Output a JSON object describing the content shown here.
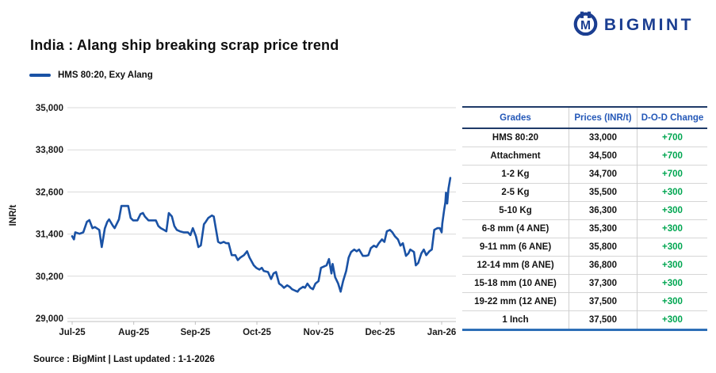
{
  "header": {
    "logo_text": "BIGMINT",
    "logo_icon": "bigmint-circle-m-icon",
    "logo_color": "#1b3e91"
  },
  "title": "India : Alang ship breaking scrap price trend",
  "legend": {
    "label": "HMS 80:20, Exy Alang",
    "line_color": "#1a52a5"
  },
  "chart_data": {
    "type": "line",
    "title": "India : Alang ship breaking scrap price trend",
    "xlabel": "",
    "ylabel": "INR/t",
    "ylim": [
      29000,
      35000
    ],
    "grid": "horizontal",
    "legend_position": "top-left",
    "x_tick_labels": [
      "Jul-25",
      "Aug-25",
      "Sep-25",
      "Oct-25",
      "Nov-25",
      "Dec-25",
      "Jan-26"
    ],
    "y_ticks": [
      {
        "v": 35000,
        "label": "35,000"
      },
      {
        "v": 33800,
        "label": "33,800"
      },
      {
        "v": 32600,
        "label": "32,600"
      },
      {
        "v": 31400,
        "label": "31,400"
      },
      {
        "v": 30200,
        "label": "30,200"
      },
      {
        "v": 29000,
        "label": "29,000"
      }
    ],
    "series": [
      {
        "name": "HMS 80:20, Exy Alang",
        "color": "#1a52a5",
        "x_unit": "months since Jul-25 tick (0=Jul-25, 6=Jan-26)",
        "points": [
          [
            0.0,
            31340
          ],
          [
            0.03,
            31250
          ],
          [
            0.05,
            31450
          ],
          [
            0.12,
            31410
          ],
          [
            0.18,
            31450
          ],
          [
            0.24,
            31750
          ],
          [
            0.28,
            31800
          ],
          [
            0.33,
            31570
          ],
          [
            0.37,
            31600
          ],
          [
            0.44,
            31520
          ],
          [
            0.48,
            31030
          ],
          [
            0.53,
            31560
          ],
          [
            0.57,
            31750
          ],
          [
            0.6,
            31820
          ],
          [
            0.66,
            31640
          ],
          [
            0.69,
            31570
          ],
          [
            0.76,
            31820
          ],
          [
            0.8,
            32200
          ],
          [
            0.85,
            32200
          ],
          [
            0.91,
            32200
          ],
          [
            0.95,
            31860
          ],
          [
            0.99,
            31790
          ],
          [
            1.06,
            31790
          ],
          [
            1.11,
            31970
          ],
          [
            1.15,
            32000
          ],
          [
            1.18,
            31900
          ],
          [
            1.24,
            31790
          ],
          [
            1.3,
            31790
          ],
          [
            1.36,
            31790
          ],
          [
            1.4,
            31630
          ],
          [
            1.44,
            31570
          ],
          [
            1.49,
            31520
          ],
          [
            1.53,
            31480
          ],
          [
            1.57,
            32000
          ],
          [
            1.62,
            31900
          ],
          [
            1.66,
            31630
          ],
          [
            1.7,
            31520
          ],
          [
            1.75,
            31480
          ],
          [
            1.81,
            31450
          ],
          [
            1.88,
            31450
          ],
          [
            1.92,
            31370
          ],
          [
            1.96,
            31570
          ],
          [
            2.01,
            31340
          ],
          [
            2.05,
            31030
          ],
          [
            2.09,
            31080
          ],
          [
            2.14,
            31680
          ],
          [
            2.17,
            31750
          ],
          [
            2.21,
            31860
          ],
          [
            2.27,
            31930
          ],
          [
            2.3,
            31900
          ],
          [
            2.37,
            31180
          ],
          [
            2.41,
            31140
          ],
          [
            2.46,
            31180
          ],
          [
            2.5,
            31140
          ],
          [
            2.54,
            31140
          ],
          [
            2.59,
            30800
          ],
          [
            2.65,
            30800
          ],
          [
            2.69,
            30660
          ],
          [
            2.73,
            30730
          ],
          [
            2.79,
            30800
          ],
          [
            2.84,
            30910
          ],
          [
            2.88,
            30730
          ],
          [
            2.95,
            30510
          ],
          [
            2.99,
            30440
          ],
          [
            3.04,
            30390
          ],
          [
            3.08,
            30440
          ],
          [
            3.11,
            30350
          ],
          [
            3.18,
            30320
          ],
          [
            3.23,
            30120
          ],
          [
            3.27,
            30280
          ],
          [
            3.31,
            30320
          ],
          [
            3.36,
            29990
          ],
          [
            3.4,
            29940
          ],
          [
            3.44,
            29870
          ],
          [
            3.49,
            29940
          ],
          [
            3.53,
            29900
          ],
          [
            3.57,
            29830
          ],
          [
            3.62,
            29790
          ],
          [
            3.66,
            29760
          ],
          [
            3.69,
            29830
          ],
          [
            3.75,
            29900
          ],
          [
            3.78,
            29870
          ],
          [
            3.82,
            29990
          ],
          [
            3.87,
            29870
          ],
          [
            3.91,
            29830
          ],
          [
            3.95,
            29990
          ],
          [
            4.0,
            30060
          ],
          [
            4.04,
            30440
          ],
          [
            4.08,
            30470
          ],
          [
            4.13,
            30510
          ],
          [
            4.17,
            30690
          ],
          [
            4.21,
            30280
          ],
          [
            4.23,
            30550
          ],
          [
            4.27,
            30170
          ],
          [
            4.32,
            29990
          ],
          [
            4.36,
            29760
          ],
          [
            4.4,
            30060
          ],
          [
            4.45,
            30350
          ],
          [
            4.49,
            30730
          ],
          [
            4.53,
            30890
          ],
          [
            4.58,
            30960
          ],
          [
            4.62,
            30910
          ],
          [
            4.66,
            30960
          ],
          [
            4.72,
            30780
          ],
          [
            4.77,
            30780
          ],
          [
            4.81,
            30800
          ],
          [
            4.85,
            31000
          ],
          [
            4.9,
            31070
          ],
          [
            4.94,
            31030
          ],
          [
            4.98,
            31140
          ],
          [
            5.03,
            31250
          ],
          [
            5.07,
            31180
          ],
          [
            5.11,
            31480
          ],
          [
            5.16,
            31520
          ],
          [
            5.2,
            31450
          ],
          [
            5.24,
            31340
          ],
          [
            5.29,
            31250
          ],
          [
            5.33,
            31070
          ],
          [
            5.37,
            31140
          ],
          [
            5.42,
            30780
          ],
          [
            5.46,
            30850
          ],
          [
            5.49,
            30960
          ],
          [
            5.55,
            30890
          ],
          [
            5.58,
            30510
          ],
          [
            5.62,
            30580
          ],
          [
            5.67,
            30850
          ],
          [
            5.71,
            30960
          ],
          [
            5.75,
            30800
          ],
          [
            5.8,
            30910
          ],
          [
            5.84,
            30960
          ],
          [
            5.88,
            31520
          ],
          [
            5.93,
            31570
          ],
          [
            5.97,
            31570
          ],
          [
            6.0,
            31450
          ],
          [
            6.01,
            31700
          ],
          [
            6.04,
            32080
          ],
          [
            6.06,
            32310
          ],
          [
            6.07,
            32580
          ],
          [
            6.09,
            32270
          ],
          [
            6.11,
            32690
          ],
          [
            6.14,
            33000
          ]
        ]
      }
    ]
  },
  "table": {
    "columns": [
      "Grades",
      "Prices (INR/t)",
      "D-O-D Change"
    ],
    "header_color": "#2458b8",
    "change_color": "#00a651",
    "rows": [
      {
        "grade": "HMS 80:20",
        "price": "33,000",
        "change": "+700"
      },
      {
        "grade": "Attachment",
        "price": "34,500",
        "change": "+700"
      },
      {
        "grade": "1-2 Kg",
        "price": "34,700",
        "change": "+700"
      },
      {
        "grade": "2-5 Kg",
        "price": "35,500",
        "change": "+300"
      },
      {
        "grade": "5-10 Kg",
        "price": "36,300",
        "change": "+300"
      },
      {
        "grade": "6-8 mm (4 ANE)",
        "price": "35,300",
        "change": "+300"
      },
      {
        "grade": "9-11 mm (6 ANE)",
        "price": "35,800",
        "change": "+300"
      },
      {
        "grade": "12-14 mm (8 ANE)",
        "price": "36,800",
        "change": "+300"
      },
      {
        "grade": "15-18 mm (10 ANE)",
        "price": "37,300",
        "change": "+300"
      },
      {
        "grade": "19-22 mm (12 ANE)",
        "price": "37,500",
        "change": "+300"
      },
      {
        "grade": "1 Inch",
        "price": "37,500",
        "change": "+300"
      }
    ]
  },
  "footer": {
    "source": "Source : BigMint | Last updated : 1-1-2026"
  }
}
